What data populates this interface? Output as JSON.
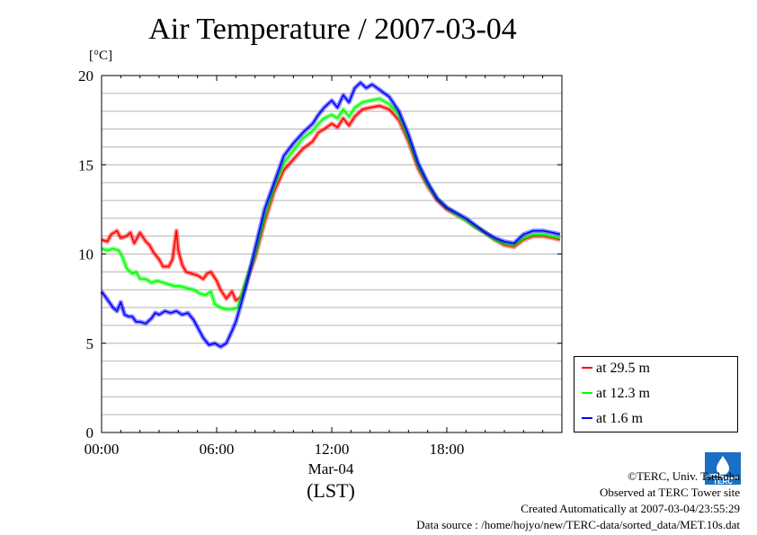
{
  "chart_data": {
    "type": "line",
    "title": "Air Temperature / 2007-03-04",
    "ylabel": "[°C]",
    "xlabel": "(LST)",
    "x_category_label": "Mar-04",
    "ylim": [
      0,
      20
    ],
    "xlim_hours": [
      0,
      24
    ],
    "yticks": [
      "0",
      "5",
      "10",
      "15",
      "20"
    ],
    "xticks": [
      {
        "hour": 0,
        "label": "00:00"
      },
      {
        "hour": 6,
        "label": "06:00"
      },
      {
        "hour": 12,
        "label": "12:00"
      },
      {
        "hour": 18,
        "label": "18:00"
      }
    ],
    "grid": "horizontal, every 1 °C",
    "legend_position": "bottom-right, outside plot",
    "series": [
      {
        "name": "at 29.5 m",
        "color": "#ff0000",
        "points": [
          [
            0.0,
            10.8
          ],
          [
            0.3,
            10.7
          ],
          [
            0.5,
            11.1
          ],
          [
            0.8,
            11.3
          ],
          [
            1.0,
            10.9
          ],
          [
            1.3,
            11.0
          ],
          [
            1.5,
            11.2
          ],
          [
            1.7,
            10.6
          ],
          [
            2.0,
            11.2
          ],
          [
            2.3,
            10.7
          ],
          [
            2.5,
            10.5
          ],
          [
            2.7,
            10.1
          ],
          [
            3.0,
            9.7
          ],
          [
            3.2,
            9.3
          ],
          [
            3.5,
            9.3
          ],
          [
            3.7,
            9.7
          ],
          [
            3.9,
            11.3
          ],
          [
            4.0,
            10.2
          ],
          [
            4.2,
            9.4
          ],
          [
            4.4,
            9.0
          ],
          [
            4.7,
            8.9
          ],
          [
            5.0,
            8.8
          ],
          [
            5.3,
            8.6
          ],
          [
            5.5,
            8.9
          ],
          [
            5.7,
            9.0
          ],
          [
            6.0,
            8.5
          ],
          [
            6.2,
            8.0
          ],
          [
            6.5,
            7.5
          ],
          [
            6.8,
            7.9
          ],
          [
            7.0,
            7.4
          ],
          [
            7.3,
            7.6
          ],
          [
            7.6,
            8.6
          ],
          [
            8.0,
            9.8
          ],
          [
            8.5,
            11.8
          ],
          [
            9.0,
            13.5
          ],
          [
            9.5,
            14.7
          ],
          [
            10.0,
            15.3
          ],
          [
            10.5,
            15.9
          ],
          [
            11.0,
            16.3
          ],
          [
            11.3,
            16.8
          ],
          [
            11.6,
            17.0
          ],
          [
            12.0,
            17.3
          ],
          [
            12.3,
            17.1
          ],
          [
            12.6,
            17.6
          ],
          [
            12.9,
            17.2
          ],
          [
            13.2,
            17.7
          ],
          [
            13.6,
            18.1
          ],
          [
            14.0,
            18.2
          ],
          [
            14.5,
            18.3
          ],
          [
            15.0,
            18.1
          ],
          [
            15.5,
            17.5
          ],
          [
            16.0,
            16.3
          ],
          [
            16.5,
            14.8
          ],
          [
            17.0,
            13.8
          ],
          [
            17.5,
            13.0
          ],
          [
            18.0,
            12.5
          ],
          [
            18.5,
            12.2
          ],
          [
            19.0,
            11.9
          ],
          [
            19.5,
            11.5
          ],
          [
            20.0,
            11.2
          ],
          [
            20.5,
            10.8
          ],
          [
            21.0,
            10.5
          ],
          [
            21.5,
            10.4
          ],
          [
            22.0,
            10.8
          ],
          [
            22.5,
            11.0
          ],
          [
            23.0,
            11.0
          ],
          [
            23.5,
            10.9
          ],
          [
            23.9,
            10.8
          ]
        ]
      },
      {
        "name": "at 12.3 m",
        "color": "#00ff00",
        "points": [
          [
            0.0,
            10.3
          ],
          [
            0.3,
            10.2
          ],
          [
            0.6,
            10.3
          ],
          [
            0.9,
            10.2
          ],
          [
            1.1,
            9.8
          ],
          [
            1.3,
            9.2
          ],
          [
            1.6,
            8.9
          ],
          [
            1.8,
            9.0
          ],
          [
            2.0,
            8.6
          ],
          [
            2.3,
            8.6
          ],
          [
            2.6,
            8.4
          ],
          [
            2.9,
            8.5
          ],
          [
            3.2,
            8.4
          ],
          [
            3.5,
            8.3
          ],
          [
            3.8,
            8.2
          ],
          [
            4.1,
            8.2
          ],
          [
            4.4,
            8.1
          ],
          [
            4.8,
            8.0
          ],
          [
            5.1,
            7.8
          ],
          [
            5.4,
            7.7
          ],
          [
            5.7,
            7.9
          ],
          [
            5.9,
            7.2
          ],
          [
            6.2,
            7.0
          ],
          [
            6.5,
            6.9
          ],
          [
            6.8,
            6.9
          ],
          [
            7.1,
            7.0
          ],
          [
            7.3,
            7.7
          ],
          [
            7.6,
            8.7
          ],
          [
            8.0,
            10.0
          ],
          [
            8.5,
            12.1
          ],
          [
            9.0,
            13.8
          ],
          [
            9.5,
            15.1
          ],
          [
            10.0,
            15.8
          ],
          [
            10.5,
            16.5
          ],
          [
            11.0,
            16.9
          ],
          [
            11.3,
            17.3
          ],
          [
            11.6,
            17.6
          ],
          [
            12.0,
            17.8
          ],
          [
            12.3,
            17.6
          ],
          [
            12.6,
            18.1
          ],
          [
            12.9,
            17.7
          ],
          [
            13.2,
            18.2
          ],
          [
            13.6,
            18.5
          ],
          [
            14.0,
            18.6
          ],
          [
            14.5,
            18.7
          ],
          [
            15.0,
            18.4
          ],
          [
            15.5,
            17.8
          ],
          [
            16.0,
            16.5
          ],
          [
            16.5,
            15.0
          ],
          [
            17.0,
            13.9
          ],
          [
            17.5,
            13.1
          ],
          [
            18.0,
            12.6
          ],
          [
            18.5,
            12.2
          ],
          [
            19.0,
            11.9
          ],
          [
            19.5,
            11.5
          ],
          [
            20.0,
            11.2
          ],
          [
            20.5,
            10.8
          ],
          [
            21.0,
            10.6
          ],
          [
            21.5,
            10.5
          ],
          [
            22.0,
            10.9
          ],
          [
            22.5,
            11.1
          ],
          [
            23.0,
            11.1
          ],
          [
            23.5,
            11.0
          ],
          [
            23.9,
            10.9
          ]
        ]
      },
      {
        "name": "at 1.6 m",
        "color": "#0000ff",
        "points": [
          [
            0.0,
            7.9
          ],
          [
            0.2,
            7.6
          ],
          [
            0.4,
            7.3
          ],
          [
            0.6,
            7.0
          ],
          [
            0.8,
            6.8
          ],
          [
            1.0,
            7.3
          ],
          [
            1.2,
            6.6
          ],
          [
            1.4,
            6.5
          ],
          [
            1.6,
            6.5
          ],
          [
            1.8,
            6.2
          ],
          [
            2.0,
            6.2
          ],
          [
            2.3,
            6.1
          ],
          [
            2.6,
            6.4
          ],
          [
            2.8,
            6.7
          ],
          [
            3.0,
            6.6
          ],
          [
            3.3,
            6.8
          ],
          [
            3.6,
            6.7
          ],
          [
            3.9,
            6.8
          ],
          [
            4.2,
            6.6
          ],
          [
            4.5,
            6.7
          ],
          [
            4.8,
            6.3
          ],
          [
            5.0,
            5.9
          ],
          [
            5.3,
            5.3
          ],
          [
            5.6,
            4.9
          ],
          [
            5.9,
            5.0
          ],
          [
            6.2,
            4.8
          ],
          [
            6.5,
            5.0
          ],
          [
            6.8,
            5.7
          ],
          [
            7.0,
            6.2
          ],
          [
            7.3,
            7.3
          ],
          [
            7.6,
            8.5
          ],
          [
            8.0,
            10.3
          ],
          [
            8.5,
            12.5
          ],
          [
            9.0,
            14.0
          ],
          [
            9.5,
            15.5
          ],
          [
            10.0,
            16.2
          ],
          [
            10.5,
            16.8
          ],
          [
            11.0,
            17.3
          ],
          [
            11.3,
            17.8
          ],
          [
            11.6,
            18.2
          ],
          [
            12.0,
            18.6
          ],
          [
            12.3,
            18.2
          ],
          [
            12.6,
            18.9
          ],
          [
            12.9,
            18.5
          ],
          [
            13.2,
            19.3
          ],
          [
            13.5,
            19.6
          ],
          [
            13.8,
            19.3
          ],
          [
            14.1,
            19.5
          ],
          [
            14.5,
            19.2
          ],
          [
            15.0,
            18.8
          ],
          [
            15.5,
            18.0
          ],
          [
            16.0,
            16.7
          ],
          [
            16.5,
            15.1
          ],
          [
            17.0,
            14.0
          ],
          [
            17.5,
            13.1
          ],
          [
            18.0,
            12.6
          ],
          [
            18.5,
            12.3
          ],
          [
            19.0,
            12.0
          ],
          [
            19.5,
            11.6
          ],
          [
            20.0,
            11.2
          ],
          [
            20.5,
            10.9
          ],
          [
            21.0,
            10.7
          ],
          [
            21.5,
            10.6
          ],
          [
            22.0,
            11.1
          ],
          [
            22.5,
            11.3
          ],
          [
            23.0,
            11.3
          ],
          [
            23.5,
            11.2
          ],
          [
            23.9,
            11.1
          ]
        ]
      }
    ]
  },
  "credits": {
    "copyright": "©TERC, Univ. Tsukuba",
    "observed": "Observed at TERC Tower site",
    "created": "Created Automatically at 2007-03-04/23:55:29",
    "source": "Data source : /home/hojyo/new/TERC-data/sorted_data/MET.10s.dat"
  },
  "logo": {
    "text": "TERC"
  }
}
